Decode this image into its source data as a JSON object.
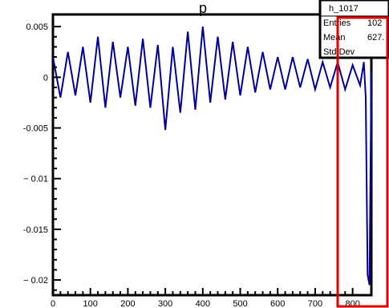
{
  "chart_data": {
    "type": "line",
    "title": "",
    "title_fragment": "p",
    "xlabel": "",
    "ylabel": "",
    "xlim": [
      0,
      850
    ],
    "ylim": [
      -0.0215,
      0.0062
    ],
    "x_ticks": [
      0,
      100,
      200,
      300,
      400,
      500,
      600,
      700,
      800
    ],
    "x_tick_labels": [
      "0",
      "100",
      "200",
      "300",
      "400",
      "500",
      "600",
      "700",
      "800"
    ],
    "y_ticks": [
      0.005,
      0,
      -0.005,
      -0.01,
      -0.015,
      -0.02
    ],
    "y_tick_labels": [
      "0.005",
      "0",
      "-0.005",
      "− 0.01",
      "-0.015",
      "− 0.02"
    ],
    "series": [
      {
        "color": "#000099",
        "x": [
          0,
          20,
          40,
          60,
          80,
          100,
          120,
          140,
          160,
          180,
          200,
          220,
          240,
          260,
          280,
          300,
          320,
          340,
          360,
          380,
          400,
          420,
          440,
          460,
          480,
          500,
          520,
          540,
          560,
          580,
          600,
          620,
          640,
          660,
          680,
          700,
          720,
          740,
          760,
          780,
          800,
          820,
          830,
          835,
          840,
          845,
          850
        ],
        "y": [
          0.002,
          -0.002,
          0.0025,
          -0.0018,
          0.003,
          -0.0025,
          0.004,
          -0.003,
          0.0035,
          -0.002,
          0.003,
          -0.0028,
          0.0038,
          -0.003,
          0.0032,
          -0.0052,
          0.003,
          -0.0035,
          0.0045,
          -0.0032,
          0.005,
          -0.0025,
          0.004,
          -0.0022,
          0.0035,
          -0.0018,
          0.003,
          -0.0015,
          0.0025,
          -0.0012,
          0.002,
          -0.0012,
          0.002,
          -0.001,
          0.0018,
          -0.0012,
          0.0015,
          -0.001,
          0.0015,
          -0.0012,
          0.0012,
          -0.0008,
          0.0015,
          -0.002,
          -0.0195,
          -0.0205,
          0.0005
        ]
      }
    ],
    "grid": false,
    "legend": "none"
  },
  "stats_box": {
    "name": "h_1017",
    "entries_label": "Entries",
    "entries_value": "102",
    "mean_label": "Mean",
    "mean_value": "627.",
    "stddev_label": "Std Dev"
  },
  "highlight_box_color": "#e00000"
}
